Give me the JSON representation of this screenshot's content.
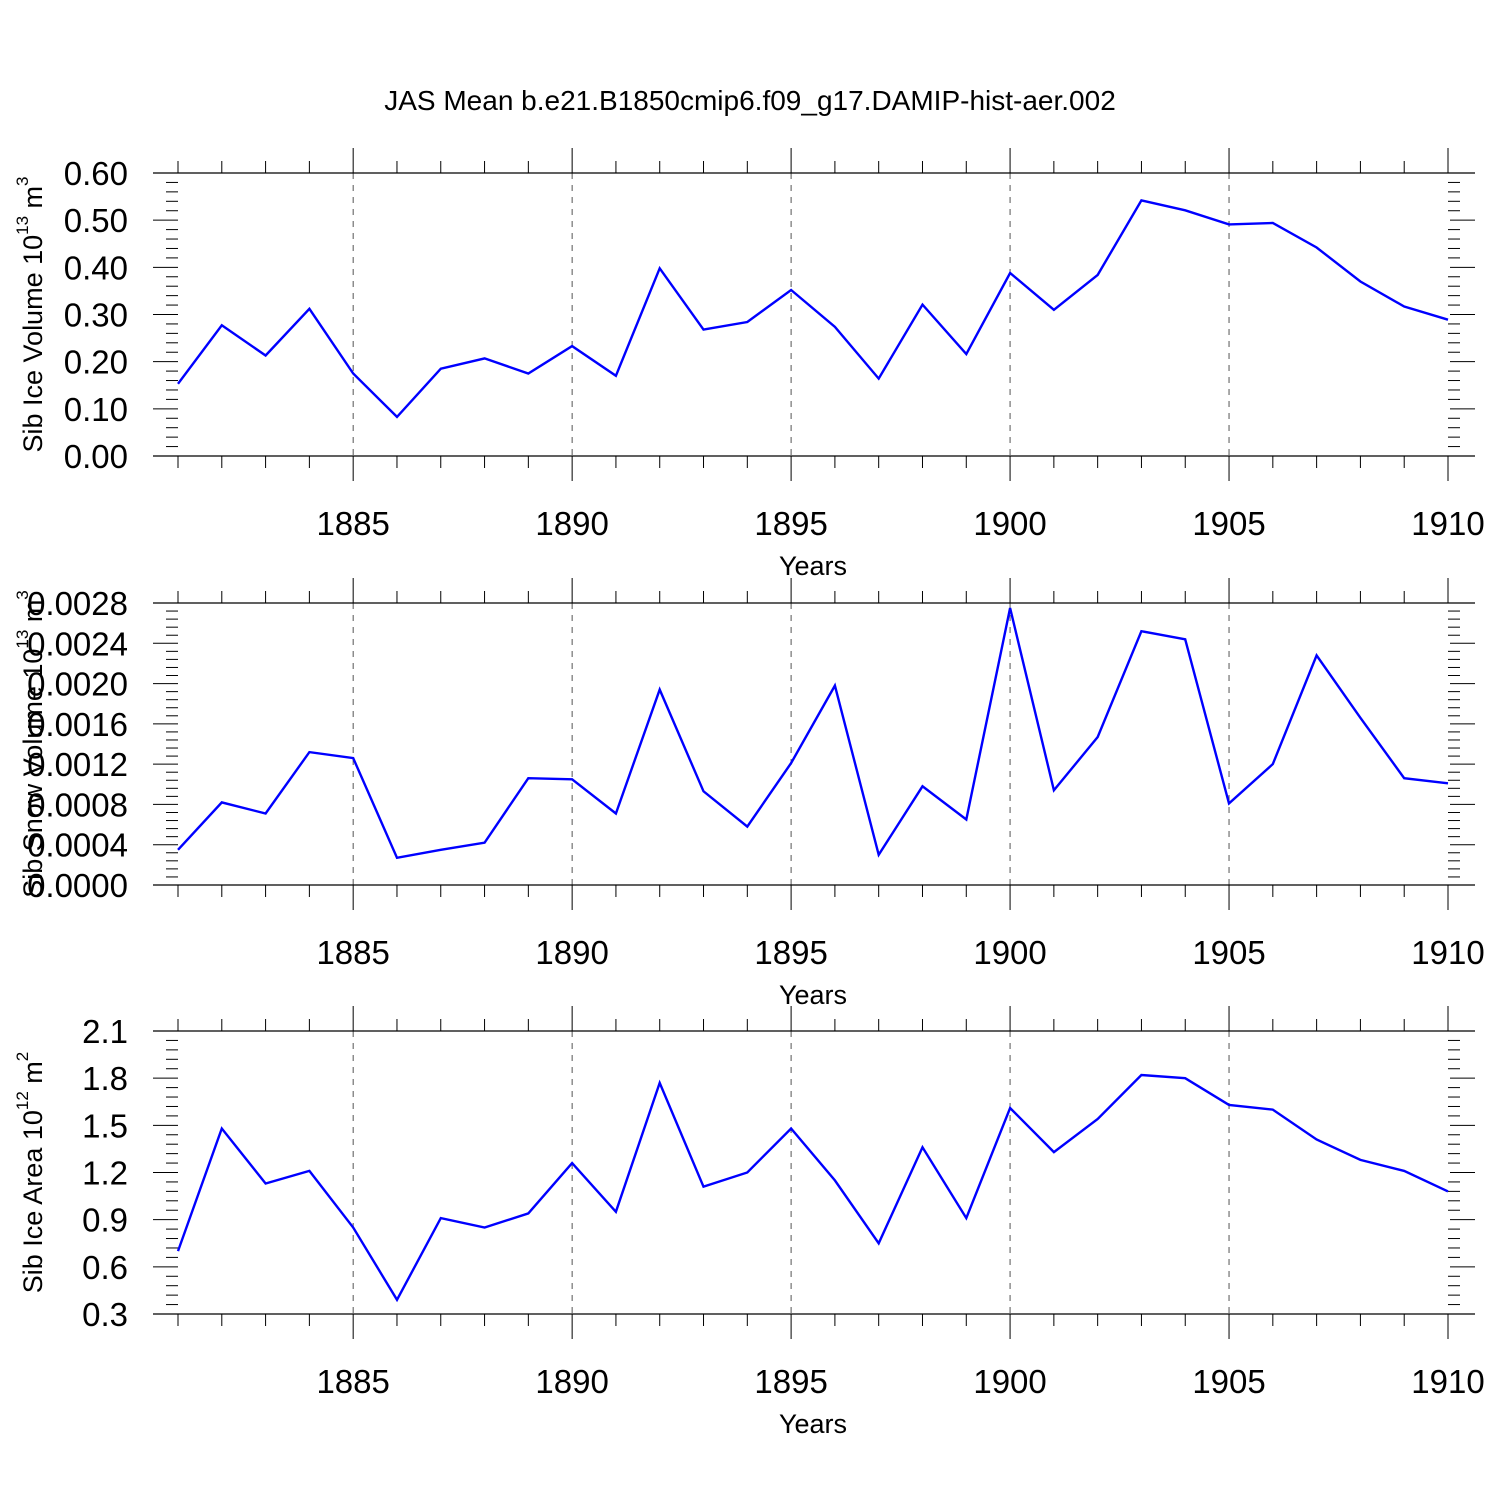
{
  "figure_title": "JAS Mean b.e21.B1850cmip6.f09_g17.DAMIP-hist-aer.002",
  "colors": {
    "line": "#0000ff",
    "axis": "#000000",
    "grid": "#555555"
  },
  "chart_data": [
    {
      "type": "line",
      "title": "",
      "xlabel": "Years",
      "ylabel": {
        "text": "Sib Ice Volume 10",
        "sup1": "13",
        "unit": " m",
        "sup2": "3"
      },
      "xlim": [
        1881,
        1910
      ],
      "ylim": [
        0.0,
        0.6
      ],
      "xticks": [
        "1885",
        "1890",
        "1895",
        "1900",
        "1905",
        "1910"
      ],
      "yticks": [
        "0.00",
        "0.10",
        "0.20",
        "0.30",
        "0.40",
        "0.50",
        "0.60"
      ],
      "grid": "vertical dashed at major x ticks",
      "series": [
        {
          "name": "Sib Ice Volume",
          "x": [
            1881,
            1882,
            1883,
            1884,
            1885,
            1886,
            1887,
            1888,
            1889,
            1890,
            1891,
            1892,
            1893,
            1894,
            1895,
            1896,
            1897,
            1898,
            1899,
            1900,
            1901,
            1902,
            1903,
            1904,
            1905,
            1906,
            1907,
            1908,
            1909,
            1910
          ],
          "values": [
            0.153,
            0.277,
            0.213,
            0.312,
            0.175,
            0.083,
            0.185,
            0.207,
            0.175,
            0.233,
            0.17,
            0.398,
            0.268,
            0.284,
            0.352,
            0.274,
            0.164,
            0.321,
            0.216,
            0.388,
            0.31,
            0.384,
            0.542,
            0.521,
            0.491,
            0.494,
            0.442,
            0.37,
            0.317,
            0.289
          ]
        }
      ]
    },
    {
      "type": "line",
      "title": "",
      "xlabel": "Years",
      "ylabel": {
        "text": "Sib Snow Volume 10",
        "sup1": "13",
        "unit": " m",
        "sup2": "3"
      },
      "xlim": [
        1881,
        1910
      ],
      "ylim": [
        0.0,
        0.0028
      ],
      "xticks": [
        "1885",
        "1890",
        "1895",
        "1900",
        "1905",
        "1910"
      ],
      "yticks": [
        "0.0000",
        "0.0004",
        "0.0008",
        "0.0012",
        "0.0016",
        "0.0020",
        "0.0024",
        "0.0028"
      ],
      "grid": "vertical dashed at major x ticks",
      "series": [
        {
          "name": "Sib Snow Volume",
          "x": [
            1881,
            1882,
            1883,
            1884,
            1885,
            1886,
            1887,
            1888,
            1889,
            1890,
            1891,
            1892,
            1893,
            1894,
            1895,
            1896,
            1897,
            1898,
            1899,
            1900,
            1901,
            1902,
            1903,
            1904,
            1905,
            1906,
            1907,
            1908,
            1909,
            1910
          ],
          "values": [
            0.00035,
            0.00082,
            0.00071,
            0.00132,
            0.00126,
            0.00027,
            0.00035,
            0.00042,
            0.00106,
            0.00105,
            0.00071,
            0.00194,
            0.00093,
            0.00058,
            0.00121,
            0.00198,
            0.0003,
            0.00098,
            0.00065,
            0.00275,
            0.00094,
            0.00147,
            0.00252,
            0.00244,
            0.00081,
            0.0012,
            0.00228,
            0.00166,
            0.00106,
            0.00101
          ]
        }
      ]
    },
    {
      "type": "line",
      "title": "",
      "xlabel": "Years",
      "ylabel": {
        "text": "Sib Ice Area 10",
        "sup1": "12",
        "unit": " m",
        "sup2": "2"
      },
      "xlim": [
        1881,
        1910
      ],
      "ylim": [
        0.3,
        2.1
      ],
      "xticks": [
        "1885",
        "1890",
        "1895",
        "1900",
        "1905",
        "1910"
      ],
      "yticks": [
        "0.3",
        "0.6",
        "0.9",
        "1.2",
        "1.5",
        "1.8",
        "2.1"
      ],
      "grid": "vertical dashed at major x ticks",
      "series": [
        {
          "name": "Sib Ice Area",
          "x": [
            1881,
            1882,
            1883,
            1884,
            1885,
            1886,
            1887,
            1888,
            1889,
            1890,
            1891,
            1892,
            1893,
            1894,
            1895,
            1896,
            1897,
            1898,
            1899,
            1900,
            1901,
            1902,
            1903,
            1904,
            1905,
            1906,
            1907,
            1908,
            1909,
            1910
          ],
          "values": [
            0.7,
            1.48,
            1.13,
            1.21,
            0.85,
            0.39,
            0.91,
            0.85,
            0.94,
            1.26,
            0.95,
            1.77,
            1.11,
            1.2,
            1.48,
            1.15,
            0.75,
            1.36,
            0.91,
            1.61,
            1.33,
            1.54,
            1.82,
            1.8,
            1.63,
            1.6,
            1.41,
            1.28,
            1.21,
            1.08
          ]
        }
      ]
    }
  ]
}
